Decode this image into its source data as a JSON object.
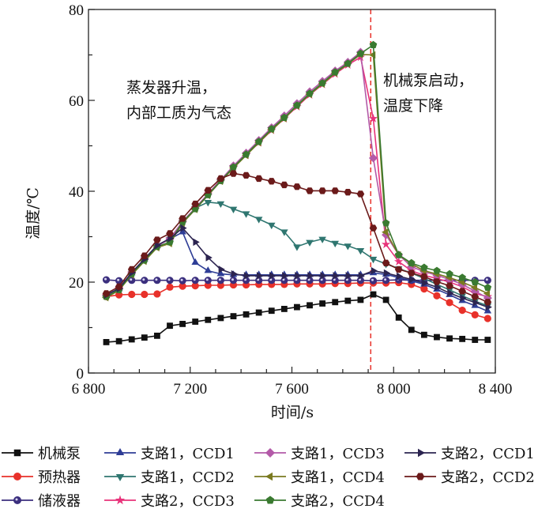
{
  "chart_data": {
    "type": "line",
    "title": "",
    "xlabel": "时间/s",
    "ylabel": "温度/℃",
    "xlim": [
      6800,
      8400
    ],
    "ylim": [
      0,
      80
    ],
    "xticks": [
      6800,
      7200,
      7600,
      8000,
      8400
    ],
    "xtick_labels": [
      "6 800",
      "7 200",
      "7 600",
      "8 000",
      "8 400"
    ],
    "yticks": [
      0,
      20,
      40,
      60,
      80
    ],
    "ytick_labels": [
      "0",
      "20",
      "40",
      "60",
      "80"
    ],
    "grid": false,
    "legend_placement": "bottom",
    "vline": {
      "x": 7910,
      "color": "#e8312a",
      "style": "dashed"
    },
    "annotations": [
      {
        "lines": [
          "蒸发器升温，",
          "内部工质为气态"
        ]
      },
      {
        "lines": [
          "机械泵启动，",
          "温度下降"
        ]
      }
    ],
    "x": [
      6870,
      6920,
      6970,
      7020,
      7070,
      7120,
      7170,
      7220,
      7270,
      7320,
      7370,
      7420,
      7470,
      7520,
      7570,
      7620,
      7670,
      7720,
      7770,
      7820,
      7870,
      7920,
      7970,
      8020,
      8070,
      8120,
      8170,
      8220,
      8270,
      8320,
      8370
    ],
    "series": [
      {
        "name": "机械泵",
        "color": "#111111",
        "marker": "square",
        "values": [
          6.8,
          7.0,
          7.4,
          7.8,
          8.2,
          10.4,
          10.8,
          11.3,
          11.7,
          12.1,
          12.5,
          12.9,
          13.3,
          13.7,
          14.1,
          14.5,
          14.9,
          15.3,
          15.6,
          15.9,
          16.1,
          17.3,
          16.1,
          12.2,
          9.5,
          8.4,
          7.9,
          7.6,
          7.5,
          7.3,
          7.3
        ]
      },
      {
        "name": "预热器",
        "color": "#e8312a",
        "marker": "circle",
        "values": [
          16.8,
          17.2,
          17.3,
          17.3,
          17.4,
          18.9,
          19.1,
          19.2,
          19.3,
          19.3,
          19.4,
          19.4,
          19.5,
          19.5,
          19.5,
          19.6,
          19.6,
          19.6,
          19.7,
          19.7,
          19.8,
          19.8,
          19.8,
          19.9,
          19.5,
          18.5,
          17.0,
          15.5,
          13.8,
          12.8,
          12.0
        ]
      },
      {
        "name": "储液器",
        "color": "#3b2f7e",
        "marker": "ball",
        "values": [
          20.5,
          20.3,
          20.4,
          20.4,
          20.4,
          20.4,
          20.3,
          20.4,
          20.4,
          20.4,
          20.4,
          20.4,
          20.4,
          20.4,
          20.4,
          20.4,
          20.4,
          20.4,
          20.4,
          20.4,
          20.4,
          20.3,
          20.4,
          20.5,
          20.4,
          20.4,
          20.4,
          20.4,
          20.4,
          20.4,
          20.4
        ]
      },
      {
        "name": "支路1，CCD1",
        "color": "#2e3d96",
        "marker": "triangle-up",
        "values": [
          17.0,
          18.5,
          22.0,
          25.0,
          28.0,
          29.5,
          31.0,
          24.3,
          22.5,
          21.8,
          21.6,
          21.6,
          21.6,
          21.6,
          21.6,
          21.6,
          21.6,
          21.6,
          21.6,
          21.6,
          21.6,
          22.0,
          21.7,
          21.0,
          20.3,
          19.5,
          18.4,
          17.2,
          15.9,
          14.8,
          13.6
        ]
      },
      {
        "name": "支路1，CCD2",
        "color": "#2f7670",
        "marker": "triangle-down",
        "values": [
          17.0,
          18.5,
          22.0,
          25.0,
          28.0,
          29.5,
          33.3,
          36.3,
          37.6,
          37.3,
          36.1,
          35.1,
          33.9,
          32.6,
          31.1,
          27.8,
          28.8,
          29.5,
          28.6,
          28.0,
          27.0,
          25.1,
          24.0,
          23.0,
          22.0,
          20.8,
          19.5,
          18.3,
          17.0,
          15.8,
          14.8
        ]
      },
      {
        "name": "支路2，CCD3",
        "color": "#e8327a",
        "marker": "star",
        "values": [
          17.0,
          18.5,
          22.0,
          25.0,
          28.0,
          29.5,
          33.3,
          36.3,
          39.4,
          42.5,
          45.2,
          48.0,
          50.7,
          53.4,
          56.0,
          58.6,
          61.2,
          63.5,
          65.8,
          67.8,
          69.5,
          56.0,
          28.3,
          24.5,
          22.5,
          21.5,
          20.8,
          20.0,
          19.0,
          17.5,
          16.8
        ]
      },
      {
        "name": "支路1，CCD3",
        "color": "#b35aa8",
        "marker": "diamond",
        "values": [
          17.0,
          18.5,
          22.0,
          25.0,
          28.0,
          29.5,
          33.3,
          36.3,
          39.4,
          42.5,
          45.6,
          48.4,
          51.2,
          54.0,
          56.6,
          59.3,
          61.9,
          64.2,
          66.5,
          68.4,
          70.6,
          47.3,
          30.4,
          26.0,
          23.4,
          22.3,
          21.5,
          20.6,
          19.5,
          18.0,
          16.5
        ]
      },
      {
        "name": "支路1，CCD4",
        "color": "#7a7a20",
        "marker": "triangle-left",
        "values": [
          16.6,
          18.2,
          21.6,
          24.6,
          27.6,
          28.5,
          33.0,
          36.0,
          39.1,
          42.2,
          45.1,
          47.9,
          50.7,
          53.5,
          56.0,
          58.8,
          61.3,
          63.6,
          66.0,
          68.0,
          70.1,
          70.0,
          31.0,
          26.0,
          24.0,
          22.5,
          21.8,
          21.0,
          20.0,
          18.8,
          17.5
        ]
      },
      {
        "name": "支路2，CCD4",
        "color": "#3a7a30",
        "marker": "pentagon",
        "values": [
          16.8,
          18.3,
          21.8,
          24.8,
          27.8,
          28.8,
          33.2,
          36.1,
          39.2,
          42.3,
          45.3,
          48.1,
          50.9,
          53.7,
          56.2,
          58.9,
          61.5,
          63.8,
          66.2,
          68.1,
          70.3,
          72.2,
          33.0,
          26.0,
          24.2,
          23.2,
          22.5,
          21.8,
          21.0,
          20.0,
          18.8
        ]
      },
      {
        "name": "支路2，CCD1",
        "color": "#2c2450",
        "marker": "triangle-right",
        "values": [
          17.2,
          18.6,
          22.1,
          25.1,
          28.1,
          29.6,
          31.9,
          28.8,
          25.4,
          22.8,
          21.8,
          21.4,
          21.4,
          21.4,
          21.4,
          21.4,
          21.4,
          21.4,
          21.4,
          21.4,
          21.4,
          22.5,
          22.0,
          21.3,
          20.6,
          19.8,
          18.9,
          17.6,
          16.5,
          15.5,
          14.5
        ]
      },
      {
        "name": "支路2，CCD2",
        "color": "#6b1a1a",
        "marker": "hexagon",
        "values": [
          17.5,
          19.0,
          22.8,
          25.8,
          29.3,
          30.7,
          34.0,
          37.2,
          40.2,
          42.8,
          43.9,
          43.5,
          42.8,
          42.2,
          41.4,
          41.0,
          40.1,
          40.1,
          40.1,
          39.8,
          39.4,
          31.9,
          24.2,
          22.8,
          22.0,
          21.2,
          20.1,
          19.2,
          18.0,
          16.8,
          15.6
        ]
      }
    ],
    "legend_order": [
      0,
      3,
      6,
      9,
      1,
      4,
      7,
      10,
      2,
      5,
      8
    ]
  }
}
